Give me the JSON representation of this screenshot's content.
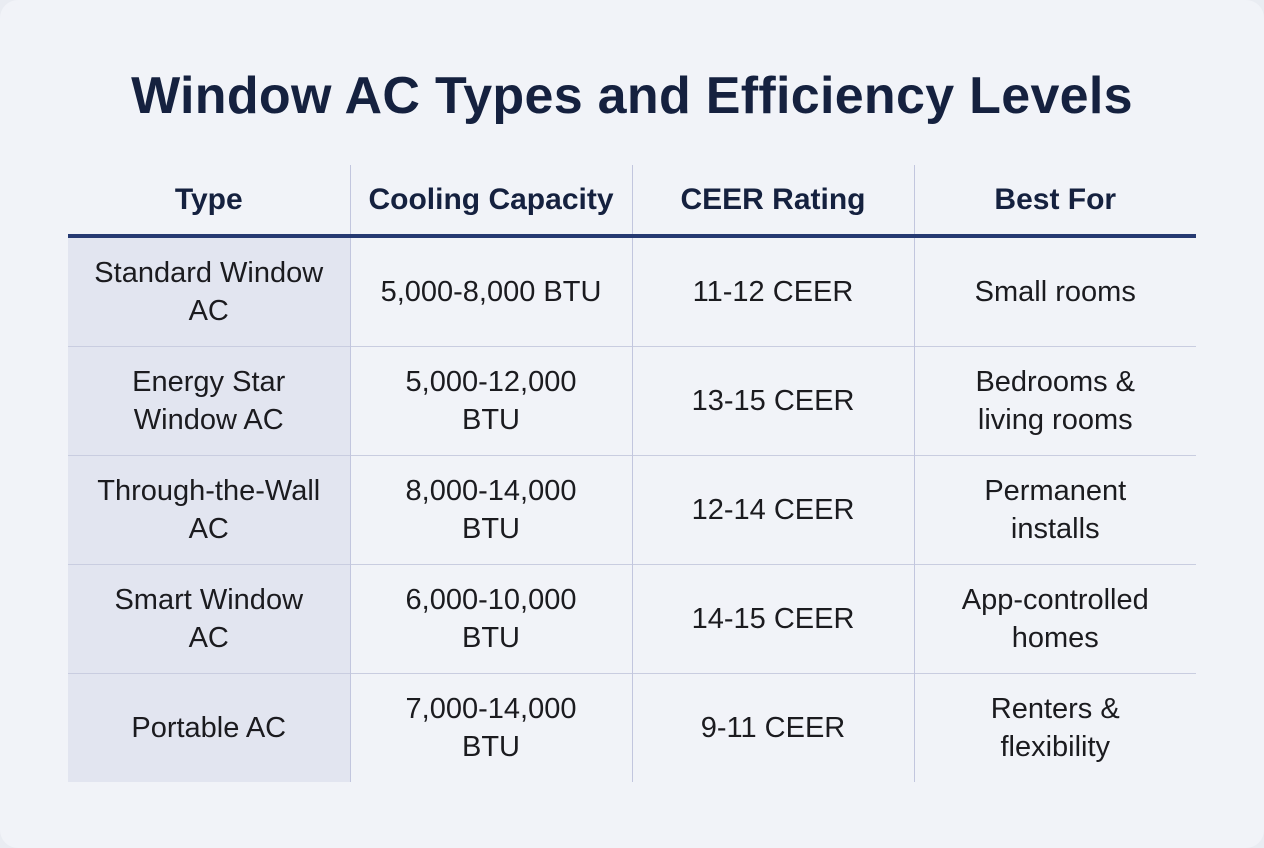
{
  "header": {
    "title": "Window AC Types and Efficiency Levels"
  },
  "table": {
    "columns": [
      "Type",
      "Cooling Capacity",
      "CEER Rating",
      "Best For"
    ],
    "rows": [
      [
        "Standard Window AC",
        "5,000-8,000 BTU",
        "11-12 CEER",
        "Small rooms"
      ],
      [
        "Energy Star Window AC",
        "5,000-12,000 BTU",
        "13-15 CEER",
        "Bedrooms & living rooms"
      ],
      [
        "Through-the-Wall AC",
        "8,000-14,000 BTU",
        "12-14 CEER",
        "Permanent installs"
      ],
      [
        "Smart Window AC",
        "6,000-10,000 BTU",
        "14-15 CEER",
        "App-controlled homes"
      ],
      [
        "Portable AC",
        "7,000-14,000 BTU",
        "9-11 CEER",
        "Renters & flexibility"
      ]
    ]
  }
}
